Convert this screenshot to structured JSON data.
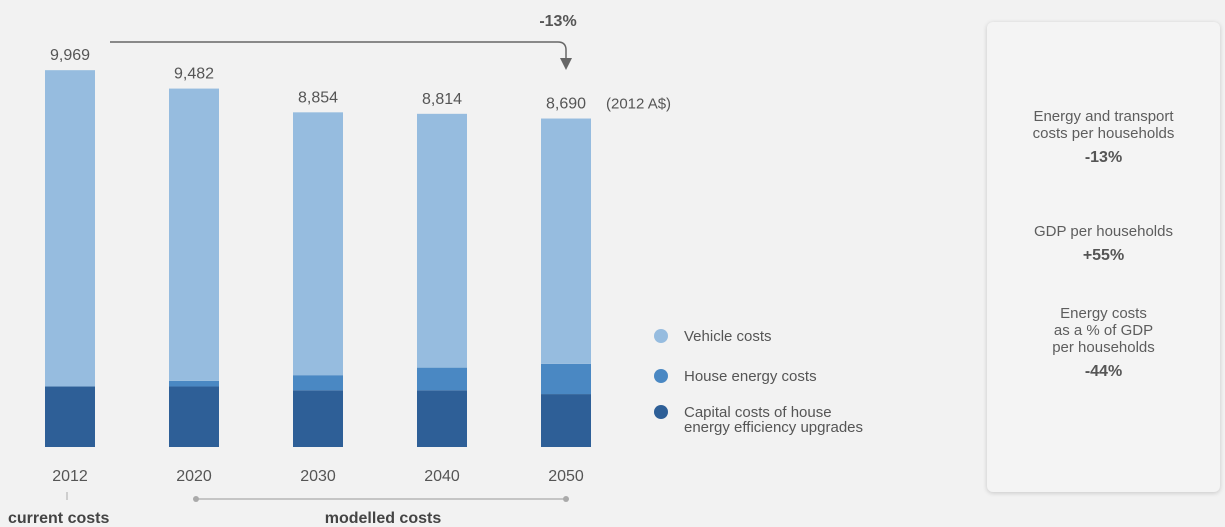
{
  "chart_data": {
    "type": "bar",
    "stacked": true,
    "categories": [
      "2012",
      "2020",
      "2030",
      "2040",
      "2050"
    ],
    "totals": [
      9969,
      9482,
      8854,
      8814,
      8690
    ],
    "total_labels": [
      "9,969",
      "9,482",
      "8,854",
      "8,814",
      "8,690"
    ],
    "unit_label": "(2012 A$)",
    "series": [
      {
        "name": "Capital costs of house energy efficiency upgrades",
        "color": "#2e5f97",
        "values": [
          1600,
          1600,
          1500,
          1500,
          1400
        ]
      },
      {
        "name": "House energy costs",
        "color": "#4a88c3",
        "values": [
          0,
          150,
          400,
          600,
          800
        ]
      },
      {
        "name": "Vehicle costs",
        "color": "#96bcdf",
        "values": [
          8369,
          7732,
          6954,
          6714,
          6490
        ]
      }
    ],
    "ylim": [
      0,
      10000
    ],
    "grid": false,
    "legend_placement": "right",
    "legend": [
      {
        "label": "Vehicle costs",
        "color": "#96bcdf"
      },
      {
        "label": "House energy costs",
        "color": "#4a88c3"
      },
      {
        "label": "Capital costs of house\nenergy efficiency upgrades",
        "color": "#2e5f97"
      }
    ],
    "annotation": {
      "text": "-13%",
      "from": "2012",
      "to": "2050"
    },
    "period_labels": {
      "current": "current costs",
      "modelled": "modelled costs"
    }
  },
  "summary_panel": {
    "items": [
      {
        "label": "Energy and transport\ncosts per households",
        "value": "-13%"
      },
      {
        "label": "GDP per households",
        "value": "+55%"
      },
      {
        "label": "Energy costs\nas a % of GDP\nper households",
        "value": "-44%"
      }
    ]
  }
}
